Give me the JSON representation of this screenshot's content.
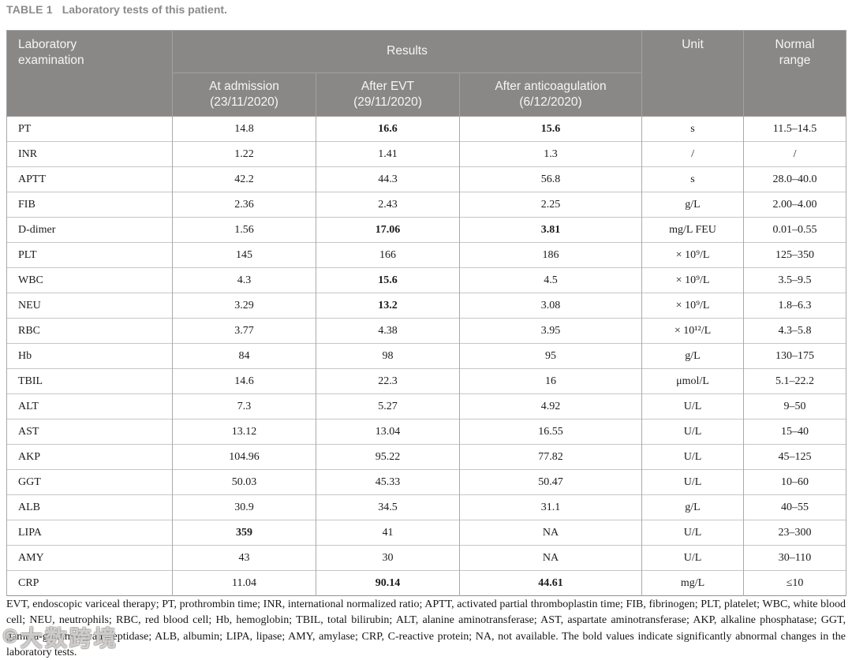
{
  "title": {
    "label": "TABLE 1",
    "caption": "Laboratory tests of this patient."
  },
  "colors": {
    "header_bg": "#8a8887",
    "header_text": "#f7f6f5",
    "title_gray": "#8b8b8b",
    "body_text": "#1c1c1c"
  },
  "table": {
    "header": {
      "laboratory_examination": "Laboratory examination",
      "results": "Results",
      "unit": "Unit",
      "normal_range": "Normal range",
      "sub_columns": [
        {
          "line1": "At admission",
          "line2": "(23/11/2020)"
        },
        {
          "line1": "After EVT",
          "line2": "(29/11/2020)"
        },
        {
          "line1": "After anticoagulation",
          "line2": "(6/12/2020)"
        }
      ]
    },
    "rows": [
      {
        "name": "PT",
        "cells": [
          {
            "v": "14.8",
            "b": false
          },
          {
            "v": "16.6",
            "b": true
          },
          {
            "v": "15.6",
            "b": true
          },
          {
            "v": "s",
            "b": false
          },
          {
            "v": "11.5–14.5",
            "b": false
          }
        ]
      },
      {
        "name": "INR",
        "cells": [
          {
            "v": "1.22",
            "b": false
          },
          {
            "v": "1.41",
            "b": false
          },
          {
            "v": "1.3",
            "b": false
          },
          {
            "v": "/",
            "b": false
          },
          {
            "v": "/",
            "b": false
          }
        ]
      },
      {
        "name": "APTT",
        "cells": [
          {
            "v": "42.2",
            "b": false
          },
          {
            "v": "44.3",
            "b": false
          },
          {
            "v": "56.8",
            "b": false
          },
          {
            "v": "s",
            "b": false
          },
          {
            "v": "28.0–40.0",
            "b": false
          }
        ]
      },
      {
        "name": "FIB",
        "cells": [
          {
            "v": "2.36",
            "b": false
          },
          {
            "v": "2.43",
            "b": false
          },
          {
            "v": "2.25",
            "b": false
          },
          {
            "v": "g/L",
            "b": false
          },
          {
            "v": "2.00–4.00",
            "b": false
          }
        ]
      },
      {
        "name": "D-dimer",
        "cells": [
          {
            "v": "1.56",
            "b": false
          },
          {
            "v": "17.06",
            "b": true
          },
          {
            "v": "3.81",
            "b": true
          },
          {
            "v": "mg/L FEU",
            "b": false
          },
          {
            "v": "0.01–0.55",
            "b": false
          }
        ]
      },
      {
        "name": "PLT",
        "cells": [
          {
            "v": "145",
            "b": false
          },
          {
            "v": "166",
            "b": false
          },
          {
            "v": "186",
            "b": false
          },
          {
            "v": "× 10⁹/L",
            "b": false
          },
          {
            "v": "125–350",
            "b": false
          }
        ]
      },
      {
        "name": "WBC",
        "cells": [
          {
            "v": "4.3",
            "b": false
          },
          {
            "v": "15.6",
            "b": true
          },
          {
            "v": "4.5",
            "b": false
          },
          {
            "v": "× 10⁹/L",
            "b": false
          },
          {
            "v": "3.5–9.5",
            "b": false
          }
        ]
      },
      {
        "name": "NEU",
        "cells": [
          {
            "v": "3.29",
            "b": false
          },
          {
            "v": "13.2",
            "b": true
          },
          {
            "v": "3.08",
            "b": false
          },
          {
            "v": "× 10⁹/L",
            "b": false
          },
          {
            "v": "1.8–6.3",
            "b": false
          }
        ]
      },
      {
        "name": "RBC",
        "cells": [
          {
            "v": "3.77",
            "b": false
          },
          {
            "v": "4.38",
            "b": false
          },
          {
            "v": "3.95",
            "b": false
          },
          {
            "v": "× 10¹²/L",
            "b": false
          },
          {
            "v": "4.3–5.8",
            "b": false
          }
        ]
      },
      {
        "name": "Hb",
        "cells": [
          {
            "v": "84",
            "b": false
          },
          {
            "v": "98",
            "b": false
          },
          {
            "v": "95",
            "b": false
          },
          {
            "v": "g/L",
            "b": false
          },
          {
            "v": "130–175",
            "b": false
          }
        ]
      },
      {
        "name": "TBIL",
        "cells": [
          {
            "v": "14.6",
            "b": false
          },
          {
            "v": "22.3",
            "b": false
          },
          {
            "v": "16",
            "b": false
          },
          {
            "v": "μmol/L",
            "b": false
          },
          {
            "v": "5.1–22.2",
            "b": false
          }
        ]
      },
      {
        "name": "ALT",
        "cells": [
          {
            "v": "7.3",
            "b": false
          },
          {
            "v": "5.27",
            "b": false
          },
          {
            "v": "4.92",
            "b": false
          },
          {
            "v": "U/L",
            "b": false
          },
          {
            "v": "9–50",
            "b": false
          }
        ]
      },
      {
        "name": "AST",
        "cells": [
          {
            "v": "13.12",
            "b": false
          },
          {
            "v": "13.04",
            "b": false
          },
          {
            "v": "16.55",
            "b": false
          },
          {
            "v": "U/L",
            "b": false
          },
          {
            "v": "15–40",
            "b": false
          }
        ]
      },
      {
        "name": "AKP",
        "cells": [
          {
            "v": "104.96",
            "b": false
          },
          {
            "v": "95.22",
            "b": false
          },
          {
            "v": "77.82",
            "b": false
          },
          {
            "v": "U/L",
            "b": false
          },
          {
            "v": "45–125",
            "b": false
          }
        ]
      },
      {
        "name": "GGT",
        "cells": [
          {
            "v": "50.03",
            "b": false
          },
          {
            "v": "45.33",
            "b": false
          },
          {
            "v": "50.47",
            "b": false
          },
          {
            "v": "U/L",
            "b": false
          },
          {
            "v": "10–60",
            "b": false
          }
        ]
      },
      {
        "name": "ALB",
        "cells": [
          {
            "v": "30.9",
            "b": false
          },
          {
            "v": "34.5",
            "b": false
          },
          {
            "v": "31.1",
            "b": false
          },
          {
            "v": "g/L",
            "b": false
          },
          {
            "v": "40–55",
            "b": false
          }
        ]
      },
      {
        "name": "LIPA",
        "cells": [
          {
            "v": "359",
            "b": true
          },
          {
            "v": "41",
            "b": false
          },
          {
            "v": "NA",
            "b": false
          },
          {
            "v": "U/L",
            "b": false
          },
          {
            "v": "23–300",
            "b": false
          }
        ]
      },
      {
        "name": "AMY",
        "cells": [
          {
            "v": "43",
            "b": false
          },
          {
            "v": "30",
            "b": false
          },
          {
            "v": "NA",
            "b": false
          },
          {
            "v": "U/L",
            "b": false
          },
          {
            "v": "30–110",
            "b": false
          }
        ]
      },
      {
        "name": "CRP",
        "cells": [
          {
            "v": "11.04",
            "b": false
          },
          {
            "v": "90.14",
            "b": true
          },
          {
            "v": "44.61",
            "b": true
          },
          {
            "v": "mg/L",
            "b": false
          },
          {
            "v": "≤10",
            "b": false
          }
        ]
      }
    ]
  },
  "footnote": "EVT, endoscopic variceal therapy; PT, prothrombin time; INR, international normalized ratio; APTT, activated partial thromboplastin time; FIB, fibrinogen; PLT, platelet; WBC, white blood cell; NEU, neutrophils; RBC, red blood cell; Hb, hemoglobin; TBIL, total bilirubin; ALT, alanine aminotransferase; AST, aspartate aminotransferase; AKP, alkaline phosphatase; GGT, gamma-glutamyl transpeptidase; ALB, albumin; LIPA, lipase; AMY, amylase; CRP, C-reactive protein; NA, not available. The bold values indicate significantly abnormal changes in the laboratory tests.",
  "watermark": {
    "icon": "©",
    "text": "大数跨境"
  }
}
